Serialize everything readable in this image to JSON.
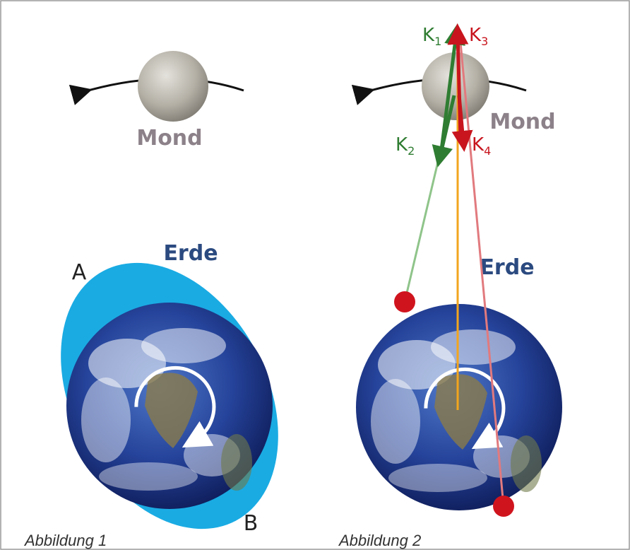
{
  "figure1": {
    "moon_label": "Mond",
    "earth_label": "Erde",
    "point_a": "A",
    "point_b": "B",
    "caption": "Abbildung 1"
  },
  "figure2": {
    "moon_label": "Mond",
    "earth_label": "Erde",
    "caption": "Abbildung 2",
    "forces": [
      {
        "letter": "K",
        "index": "1"
      },
      {
        "letter": "K",
        "index": "2"
      },
      {
        "letter": "K",
        "index": "3"
      },
      {
        "letter": "K",
        "index": "4"
      }
    ]
  }
}
